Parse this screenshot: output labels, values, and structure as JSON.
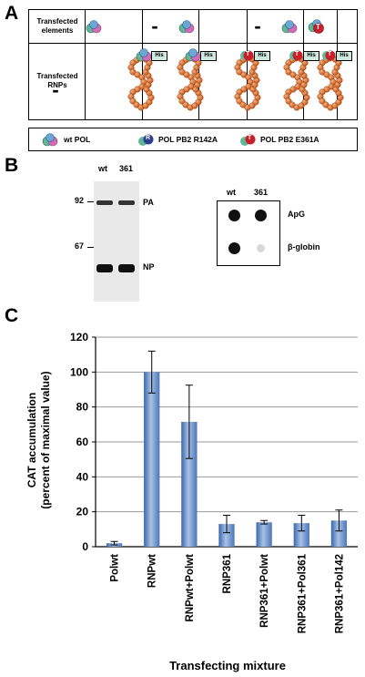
{
  "panelA": {
    "letter": "A",
    "row1_label": "Transfected elements",
    "row2_label": "Transfected RNPs",
    "dash": "-",
    "tag_his": "His",
    "badge_T": "T",
    "badge_R": "R",
    "legend": {
      "wt": "wt POL",
      "r142": "POL PB2 R142A",
      "e361": "POL PB2 E361A"
    }
  },
  "panelB": {
    "letter": "B",
    "gel": {
      "lane_wt": "wt",
      "lane_361": "361",
      "mw_92": "92",
      "mw_67": "67",
      "band_pa": "PA",
      "band_np": "NP"
    },
    "dot": {
      "lane_wt": "wt",
      "lane_361": "361",
      "row_apg": "ApG",
      "row_bglobin": "β-globin"
    }
  },
  "panelC": {
    "letter": "C"
  },
  "chart_data": {
    "type": "bar",
    "ylabel": "CAT accumulation (percent of maximal value)",
    "ylabel_line1": "CAT accumulation",
    "ylabel_line2": "(percent of maximal value)",
    "xlabel": "Transfecting mixture",
    "ylim": [
      0,
      120
    ],
    "yticks": [
      "0",
      "20",
      "40",
      "60",
      "80",
      "100",
      "120"
    ],
    "grid": true,
    "categories": [
      "Polwt",
      "RNPwt",
      "RNPwt+Polwt",
      "RNP361",
      "RNP361+Polwt",
      "RNP361+Pol361",
      "RNP361+Pol142"
    ],
    "values": [
      2,
      100,
      71.5,
      13,
      14,
      13.5,
      15
    ],
    "errors": [
      1,
      12,
      21,
      5,
      1,
      4.5,
      6
    ],
    "color": "#5b86c4"
  }
}
